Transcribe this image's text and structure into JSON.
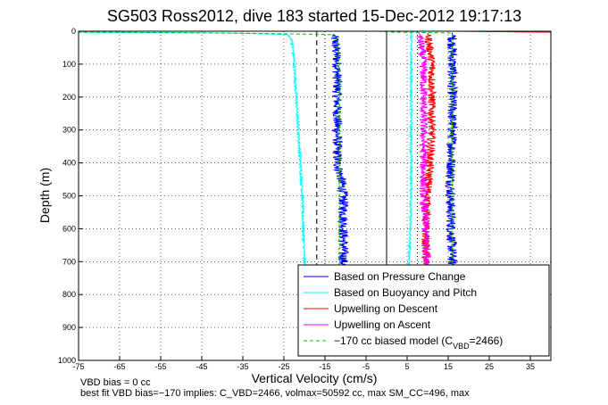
{
  "chart_data": {
    "type": "line",
    "title": "SG503 Ross2012, dive 183 started 15-Dec-2012 19:17:13",
    "xlabel": "Vertical Velocity (cm/s)",
    "ylabel": "Depth (m)",
    "xlim": [
      -75,
      40
    ],
    "ylim": [
      0,
      1000
    ],
    "y_reversed": true,
    "grid": true,
    "grid_style": "dotted",
    "xticks": [
      "-75",
      "-65",
      "-55",
      "-45",
      "-35",
      "-25",
      "-15",
      "-5",
      "5",
      "15",
      "25",
      "35"
    ],
    "xtick_values": [
      -75,
      -65,
      -55,
      -45,
      -35,
      -25,
      -15,
      -5,
      5,
      15,
      25,
      35
    ],
    "yticks": [
      "0",
      "100",
      "200",
      "300",
      "400",
      "500",
      "600",
      "700",
      "800",
      "900",
      "1000"
    ],
    "ytick_values": [
      0,
      100,
      200,
      300,
      400,
      500,
      600,
      700,
      800,
      900,
      1000
    ],
    "legend_position": "bottom-right",
    "series": [
      {
        "name": "Based on Pressure Change",
        "color": "#0000ff",
        "noise": 1.2,
        "descent": {
          "depth": [
            8,
            30,
            100,
            200,
            300,
            400,
            450,
            500,
            600,
            700,
            730
          ],
          "velocity": [
            -13,
            -12.5,
            -12,
            -12,
            -12,
            -12,
            -11,
            -10.5,
            -10.5,
            -10.5,
            -10.5
          ]
        },
        "ascent": {
          "depth": [
            5,
            100,
            300,
            500,
            700,
            730
          ],
          "velocity": [
            16,
            16,
            16,
            15.5,
            16,
            16
          ]
        }
      },
      {
        "name": "Based on Buoyancy and Pitch",
        "color": "#00ffff",
        "noise": 0.3,
        "descent": {
          "depth": [
            0,
            3,
            5,
            10,
            30,
            100,
            200,
            300,
            400,
            500,
            600,
            700,
            730
          ],
          "velocity": [
            -75,
            -75,
            -40,
            -24,
            -23,
            -22.5,
            -22,
            -21.5,
            -21,
            -20.5,
            -20.3,
            -20,
            -20
          ]
        },
        "ascent": {
          "depth": [
            0,
            5,
            20,
            100,
            300,
            500,
            700,
            730
          ],
          "velocity": [
            7,
            6,
            6,
            6,
            6,
            6,
            5.5,
            5.5
          ]
        }
      },
      {
        "name": "Upwelling on Descent",
        "color": "#ff0000",
        "noise": 1.0,
        "descent": {
          "depth": [
            5,
            100,
            200,
            300,
            400,
            500,
            600,
            650,
            700,
            730
          ],
          "velocity": [
            10,
            11,
            11,
            11,
            10.5,
            10,
            9.5,
            9.5,
            9.5,
            9.5
          ]
        },
        "ascent": {
          "depth": [
            0,
            3
          ],
          "velocity": [
            16,
            40
          ]
        }
      },
      {
        "name": "Upwelling on Ascent",
        "color": "#ff00ff",
        "noise": 1.0,
        "descent": {
          "depth": [
            5,
            100,
            200,
            300,
            400,
            500,
            600,
            700,
            730
          ],
          "velocity": [
            8,
            9,
            9,
            9,
            9,
            9,
            9.5,
            10,
            10
          ]
        },
        "ascent": {
          "depth": [],
          "velocity": []
        }
      },
      {
        "name": "-170 cc biased model (C_VBD=2466)",
        "color": "#00bb00",
        "dashed": true,
        "noise": 0.2,
        "descent": {
          "depth": [
            0,
            3,
            5,
            10,
            30,
            100,
            300,
            500,
            700,
            730
          ],
          "velocity": [
            -75,
            -75,
            -40,
            -13,
            -12,
            -11.5,
            -11.5,
            -11.5,
            -11.5,
            -11.5
          ]
        },
        "ascent": {
          "depth": [
            0,
            3,
            5,
            20,
            100,
            300,
            500,
            700,
            730
          ],
          "velocity": [
            -2,
            2,
            16,
            16,
            16,
            16,
            16,
            16,
            16
          ]
        }
      }
    ],
    "reference_lines": [
      {
        "x": -17,
        "depth_from": 0,
        "depth_to": 730,
        "style": "dashed",
        "color": "#000000"
      },
      {
        "x": -15,
        "depth_from": 0,
        "depth_to": 730,
        "style": "dotted",
        "color": "#000000"
      },
      {
        "x": 0,
        "depth_from": 0,
        "depth_to": 730,
        "style": "solid",
        "color": "#000000"
      },
      {
        "x": 7.5,
        "depth_from": 0,
        "depth_to": 730,
        "style": "dotted",
        "color": "#000000"
      }
    ]
  },
  "legend": {
    "entries": [
      {
        "label": "Based on Pressure Change",
        "color": "#0000ff",
        "dashed": false
      },
      {
        "label": "Based on Buoyancy and Pitch",
        "color": "#00ffff",
        "dashed": false
      },
      {
        "label": "Upwelling on Descent",
        "color": "#ff0000",
        "dashed": false
      },
      {
        "label": "Upwelling on Ascent",
        "color": "#ff00ff",
        "dashed": false
      },
      {
        "label": "−170 cc biased model (C",
        "color": "#00bb00",
        "dashed": true
      }
    ],
    "model_subscript": "VBD",
    "model_suffix": "=2466)"
  },
  "notes": {
    "vbd_bias": "VBD bias = 0 cc",
    "best_fit": "best fit VBD bias=−170 implies: C_VBD=2466, volmax=50592 cc, max SM_CC=496, max"
  }
}
